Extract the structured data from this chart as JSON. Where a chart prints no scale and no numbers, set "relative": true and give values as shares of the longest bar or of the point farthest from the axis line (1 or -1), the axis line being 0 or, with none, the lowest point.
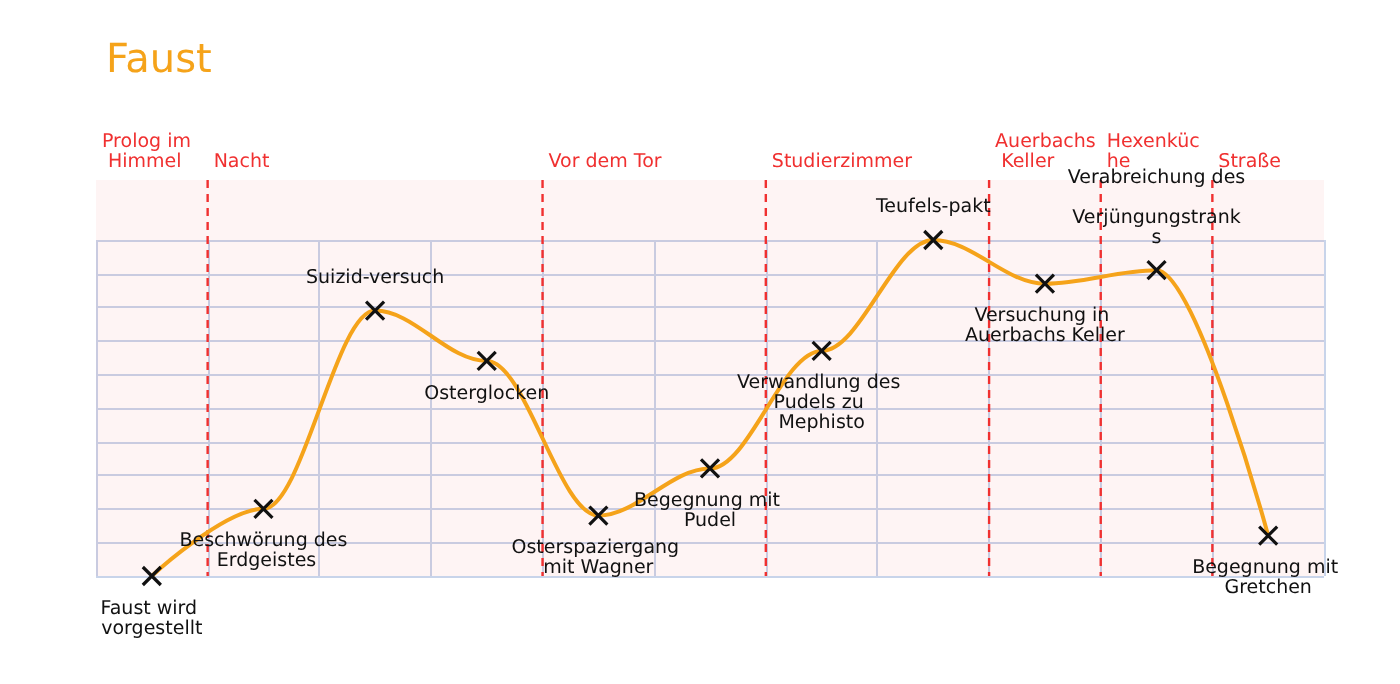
{
  "chart_data": {
    "type": "line",
    "title": "Faust",
    "relative": true,
    "marker": "cross",
    "grid": true,
    "tick_labels": false,
    "line_style": "solid",
    "categories": [
      "Faust wird vorgestellt",
      "Beschwörung des Erdgeistes",
      "Suizid-versuch",
      "Osterglocken",
      "Osterspaziergang mit Wagner",
      "Begegnung mit Pudel",
      "Verwandlung des Pudels zu Mephisto",
      "Teufels-pakt",
      "Versuchung in Auerbachs Keller",
      "Verabreichung des Verjüngungstranks",
      "Begegnung mit Gretchen"
    ],
    "series": [
      {
        "color": "#f5a31a",
        "values": [
          0,
          0.2,
          0.79,
          0.64,
          0.18,
          0.32,
          0.67,
          1,
          0.87,
          0.91,
          0.12
        ]
      }
    ],
    "bands": [
      {
        "axis": "x",
        "from": "Faust wird vorgestellt",
        "to": "Faust wird vorgestellt",
        "label": "Prolog im Himmel",
        "color": "#f03030"
      },
      {
        "axis": "x",
        "from": "Beschwörung des Erdgeistes",
        "to": "Osterglocken",
        "label": "Nacht",
        "color": "#f03030"
      },
      {
        "axis": "x",
        "from": "Osterspaziergang mit Wagner",
        "to": "Begegnung mit Pudel",
        "label": "Vor dem Tor",
        "color": "#f03030"
      },
      {
        "axis": "x",
        "from": "Verwandlung des Pudels zu Mephisto",
        "to": "Teufels-pakt",
        "label": "Studierzimmer",
        "color": "#f03030"
      },
      {
        "axis": "x",
        "from": "Versuchung in Auerbachs Keller",
        "to": "Versuchung in Auerbachs Keller",
        "label": "Auerbachs Keller",
        "color": "#f03030"
      },
      {
        "axis": "x",
        "from": "Verabreichung des Verjüngungstranks",
        "to": "Verabreichung des Verjüngungstranks",
        "label": "Hexenküche",
        "color": "#f03030"
      },
      {
        "axis": "x",
        "from": "Begegnung mit Gretchen",
        "to": "Begegnung mit Gretchen",
        "label": "Straße",
        "color": "#f03030"
      }
    ]
  }
}
